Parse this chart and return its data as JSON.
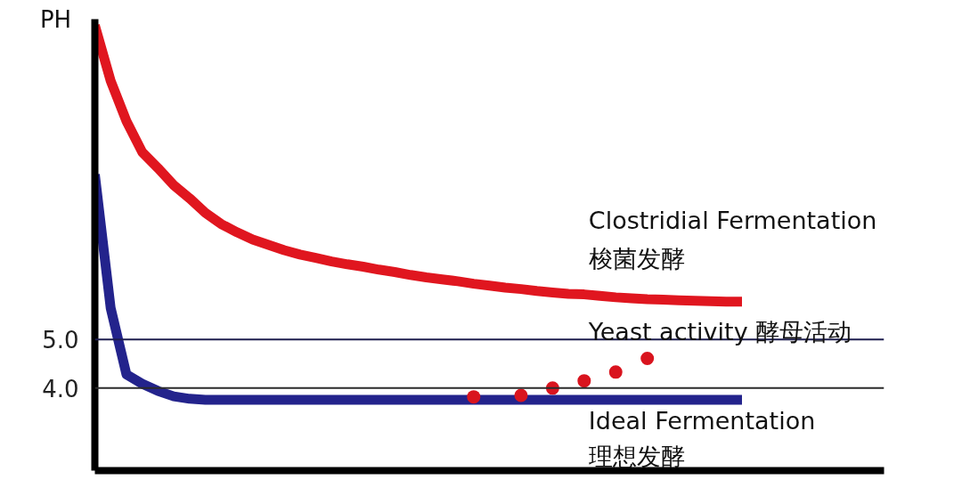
{
  "chart_data": {
    "type": "line",
    "ylabel": "PH",
    "categories": [
      null,
      null,
      null,
      null,
      null,
      null,
      null,
      null,
      null,
      null,
      null,
      null,
      null,
      null,
      null,
      null,
      null,
      null,
      null,
      null,
      null,
      null,
      null,
      null,
      null,
      null,
      null,
      null,
      null,
      null,
      null,
      null,
      null,
      null,
      null,
      null,
      null,
      null,
      null,
      null,
      null,
      null,
      null,
      null,
      null,
      null,
      null,
      null,
      null,
      null
    ],
    "ylim": [
      2.3,
      11.6
    ],
    "yticks": [
      {
        "value": 4,
        "label": "4.0"
      },
      {
        "value": 5,
        "label": "5.0"
      }
    ],
    "tick_labels": "y",
    "series": [
      {
        "name": "Clostridial Fermentation\n梭菌发酵",
        "color": "#e0161f",
        "values": [
          11.47,
          10.33,
          9.5,
          8.86,
          8.53,
          8.18,
          7.91,
          7.61,
          7.38,
          7.21,
          7.06,
          6.95,
          6.84,
          6.75,
          6.68,
          6.61,
          6.55,
          6.5,
          6.44,
          6.39,
          6.33,
          6.28,
          6.24,
          6.2,
          6.15,
          6.11,
          6.07,
          6.04,
          6.0,
          5.97,
          5.94,
          5.93,
          5.9,
          5.87,
          5.85,
          5.83,
          5.82,
          5.81,
          5.8,
          5.79,
          5.78,
          5.78,
          null,
          null,
          null,
          null,
          null,
          null,
          null,
          null
        ]
      },
      {
        "name": "Ideal Fermentation\n理想发酵",
        "color": "#23238c",
        "values": [
          8.4,
          5.65,
          4.28,
          4.09,
          3.94,
          3.83,
          3.78,
          3.76,
          3.76,
          3.76,
          3.76,
          3.76,
          3.76,
          3.76,
          3.76,
          3.76,
          3.76,
          3.76,
          3.76,
          3.76,
          3.76,
          3.76,
          3.76,
          3.76,
          3.76,
          3.76,
          3.76,
          3.76,
          3.76,
          3.76,
          3.76,
          3.76,
          3.76,
          3.76,
          3.76,
          3.76,
          3.76,
          3.76,
          3.76,
          3.76,
          3.76,
          3.76,
          null,
          null,
          null,
          null,
          null,
          null,
          null,
          null
        ]
      },
      {
        "type": "scatter",
        "marker": "circle",
        "color": "#d9141e",
        "values": [
          null,
          null,
          null,
          null,
          null,
          null,
          null,
          null,
          null,
          null,
          null,
          null,
          null,
          null,
          null,
          null,
          null,
          null,
          null,
          null,
          null,
          null,
          null,
          null,
          3.82,
          null,
          null,
          3.85,
          null,
          4.0,
          null,
          4.15,
          null,
          4.33,
          null,
          4.61,
          null,
          null,
          null,
          null,
          null,
          null,
          null,
          null,
          null,
          null,
          null,
          null,
          null,
          null
        ]
      }
    ],
    "ref_lines": [
      {
        "axis": "y",
        "value": 5,
        "color": "#1e1e4f",
        "label": "Yeast activity 酵母活动"
      },
      {
        "axis": "y",
        "value": 4,
        "color": "#2b2b2b"
      }
    ]
  }
}
